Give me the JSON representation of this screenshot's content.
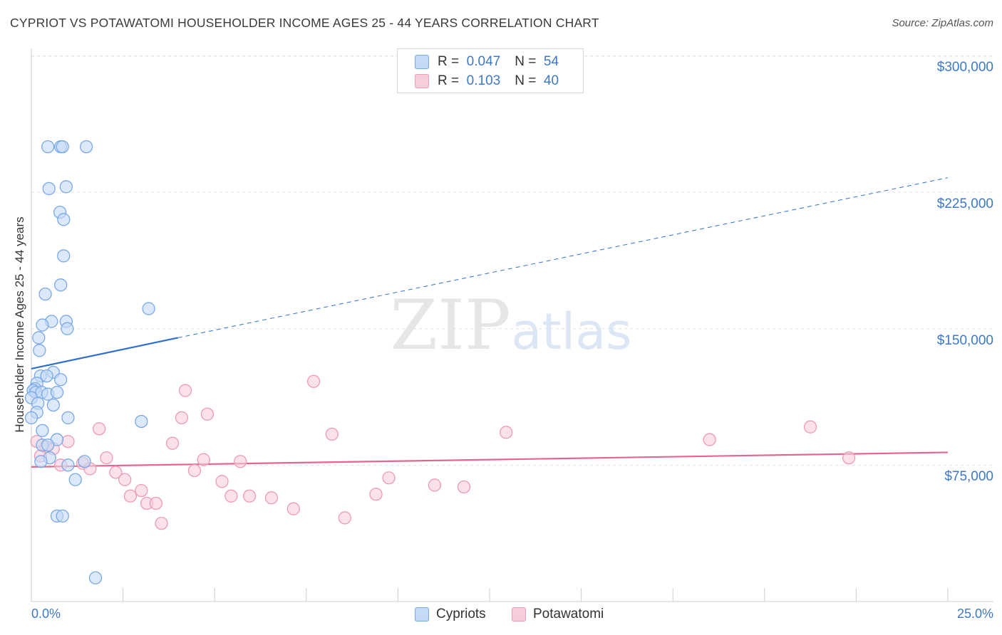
{
  "title": "CYPRIOT VS POTAWATOMI HOUSEHOLDER INCOME AGES 25 - 44 YEARS CORRELATION CHART",
  "source": "Source: ZipAtlas.com",
  "watermark": {
    "zip": "ZIP",
    "atlas": "atlas"
  },
  "legend": {
    "rows": [
      {
        "r_label": "R =",
        "r_value": "0.047",
        "n_label": "N =",
        "n_value": "54"
      },
      {
        "r_label": "R =",
        "r_value": "0.103",
        "n_label": "N =",
        "n_value": "40"
      }
    ]
  },
  "colors": {
    "cypriots_fill": "#c5daf7",
    "cypriots_stroke": "#7aa8e6",
    "cypriots_line": "#2f6fd0",
    "potawatomi_fill": "#f8cddb",
    "potawatomi_stroke": "#ec9bb5",
    "potawatomi_line": "#e2668f",
    "tick_text": "#3d78c7",
    "grid": "#e3e3e3"
  },
  "chart_data": {
    "type": "scatter",
    "title": "CYPRIOT VS POTAWATOMI HOUSEHOLDER INCOME AGES 25 - 44 YEARS CORRELATION CHART",
    "xlabel": "",
    "ylabel": "Householder Income Ages 25 - 44 years",
    "xlim": [
      0,
      25
    ],
    "ylim": [
      0,
      315000
    ],
    "x_tick_labels": [
      "0.0%",
      "25.0%"
    ],
    "y_ticks": [
      {
        "value": 75000,
        "label": "$75,000"
      },
      {
        "value": 150000,
        "label": "$150,000"
      },
      {
        "value": 225000,
        "label": "$225,000"
      },
      {
        "value": 300000,
        "label": "$300,000"
      }
    ],
    "series": [
      {
        "name": "Cypriots",
        "r": 0.047,
        "n": 54,
        "trend": {
          "x0": 0,
          "y0": 128000,
          "x1": 4.0,
          "y1": 145000,
          "x_dash_end": 25,
          "y_dash_end": 233000
        },
        "points": [
          [
            0.45,
            250000
          ],
          [
            0.8,
            250000
          ],
          [
            0.85,
            250000
          ],
          [
            1.5,
            250000
          ],
          [
            0.48,
            227000
          ],
          [
            0.95,
            228000
          ],
          [
            0.78,
            214000
          ],
          [
            0.88,
            210000
          ],
          [
            0.88,
            190000
          ],
          [
            0.8,
            174000
          ],
          [
            0.38,
            169000
          ],
          [
            3.2,
            161000
          ],
          [
            0.55,
            154000
          ],
          [
            0.95,
            154000
          ],
          [
            0.3,
            152000
          ],
          [
            0.98,
            150000
          ],
          [
            0.2,
            145000
          ],
          [
            0.22,
            138000
          ],
          [
            0.6,
            126000
          ],
          [
            0.25,
            124000
          ],
          [
            0.42,
            124000
          ],
          [
            0.8,
            122000
          ],
          [
            0.15,
            120000
          ],
          [
            0.1,
            117000
          ],
          [
            0.05,
            116000
          ],
          [
            0.12,
            115000
          ],
          [
            0.28,
            115000
          ],
          [
            0.45,
            114000
          ],
          [
            0.7,
            115000
          ],
          [
            0.0,
            112000
          ],
          [
            0.18,
            109000
          ],
          [
            0.6,
            108000
          ],
          [
            0.15,
            104000
          ],
          [
            1.0,
            101000
          ],
          [
            0.0,
            101000
          ],
          [
            3.0,
            99000
          ],
          [
            0.3,
            94000
          ],
          [
            0.7,
            89000
          ],
          [
            0.3,
            86000
          ],
          [
            0.45,
            86000
          ],
          [
            0.5,
            79000
          ],
          [
            0.26,
            77000
          ],
          [
            1.45,
            77000
          ],
          [
            1.0,
            75000
          ],
          [
            1.2,
            67000
          ],
          [
            0.7,
            47000
          ],
          [
            0.85,
            47000
          ],
          [
            1.75,
            13000
          ]
        ]
      },
      {
        "name": "Potawatomi",
        "r": 0.103,
        "n": 40,
        "trend": {
          "x0": 0,
          "y0": 74000,
          "x1": 25,
          "y1": 82000
        },
        "points": [
          [
            0.15,
            88000
          ],
          [
            1.0,
            88000
          ],
          [
            0.4,
            85000
          ],
          [
            0.25,
            80000
          ],
          [
            0.6,
            84000
          ],
          [
            0.8,
            75000
          ],
          [
            1.4,
            76000
          ],
          [
            1.6,
            73000
          ],
          [
            1.85,
            95000
          ],
          [
            2.05,
            79000
          ],
          [
            2.3,
            71000
          ],
          [
            2.55,
            67000
          ],
          [
            2.7,
            58000
          ],
          [
            3.0,
            61000
          ],
          [
            3.15,
            54000
          ],
          [
            3.4,
            54000
          ],
          [
            3.55,
            43000
          ],
          [
            3.85,
            87000
          ],
          [
            4.1,
            101000
          ],
          [
            4.2,
            116000
          ],
          [
            4.45,
            72000
          ],
          [
            4.7,
            78000
          ],
          [
            4.8,
            103000
          ],
          [
            5.2,
            66000
          ],
          [
            5.45,
            58000
          ],
          [
            5.7,
            77000
          ],
          [
            5.95,
            58000
          ],
          [
            6.55,
            57000
          ],
          [
            7.15,
            51000
          ],
          [
            7.7,
            121000
          ],
          [
            8.2,
            92000
          ],
          [
            8.55,
            46000
          ],
          [
            9.4,
            59000
          ],
          [
            9.75,
            68000
          ],
          [
            11.0,
            64000
          ],
          [
            11.8,
            63000
          ],
          [
            12.95,
            93000
          ],
          [
            18.5,
            89000
          ],
          [
            21.25,
            96000
          ],
          [
            22.3,
            79000
          ]
        ]
      }
    ]
  },
  "bottom_legend": [
    "Cypriots",
    "Potawatomi"
  ]
}
